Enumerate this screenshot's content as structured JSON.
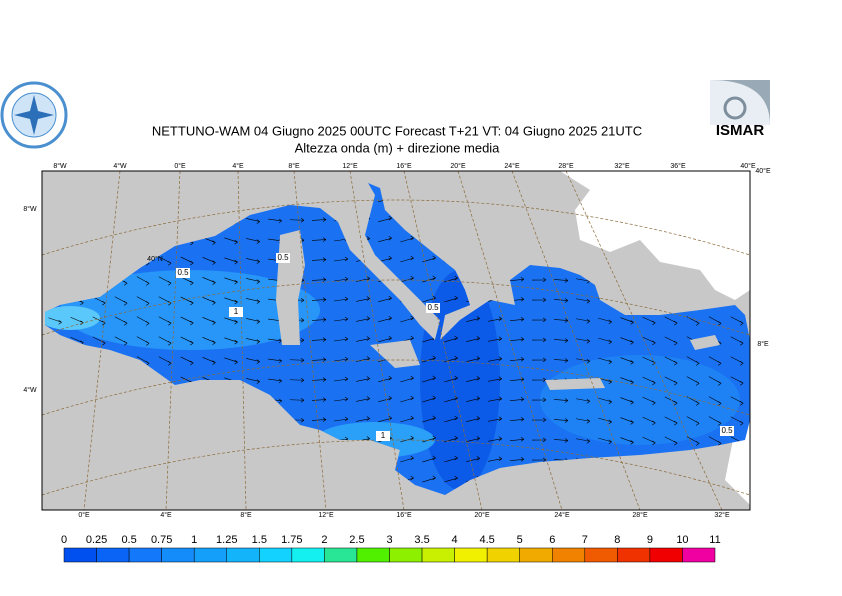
{
  "header": {
    "title": "NETTUNO-WAM  04   Giugno  2025 00UTC Forecast T+21 VT: 04   Giugno  2025 21UTC",
    "subtitle": "Altezza onda (m) + direzione media",
    "logo_right": "ISMAR"
  },
  "map": {
    "top_labels": [
      "8°W",
      "4°W",
      "0°E",
      "4°E",
      "8°E",
      "12°E",
      "16°E",
      "20°E",
      "24°E",
      "28°E",
      "32°E",
      "36°E",
      "40°E"
    ],
    "bottom_labels": [
      "0°E",
      "4°E",
      "8°E",
      "12°E",
      "16°E",
      "20°E",
      "24°E",
      "28°E",
      "32°E"
    ],
    "left_labels": [
      "8°W",
      "40°N",
      "4°W"
    ],
    "right_labels": [
      "40°E",
      "8°E"
    ],
    "contour_labels": [
      "0.5",
      "0.5",
      "1",
      "0.5",
      "1",
      "0.5"
    ]
  },
  "colorbar": {
    "labels": [
      "0",
      "0.25",
      "0.5",
      "0.75",
      "1",
      "1.25",
      "1.5",
      "1.75",
      "2",
      "2.5",
      "3",
      "3.5",
      "4",
      "4.5",
      "5",
      "6",
      "7",
      "8",
      "9",
      "10",
      "11"
    ],
    "colors": [
      "#0050f0",
      "#0a64f5",
      "#1478fa",
      "#148cfa",
      "#14a0fa",
      "#14b4fa",
      "#14d2ff",
      "#14f0f0",
      "#28e696",
      "#50f000",
      "#8cf000",
      "#c8f000",
      "#f0f000",
      "#f0d200",
      "#f0aa00",
      "#f08200",
      "#f05a00",
      "#f03200",
      "#f00000",
      "#f000a0"
    ]
  }
}
